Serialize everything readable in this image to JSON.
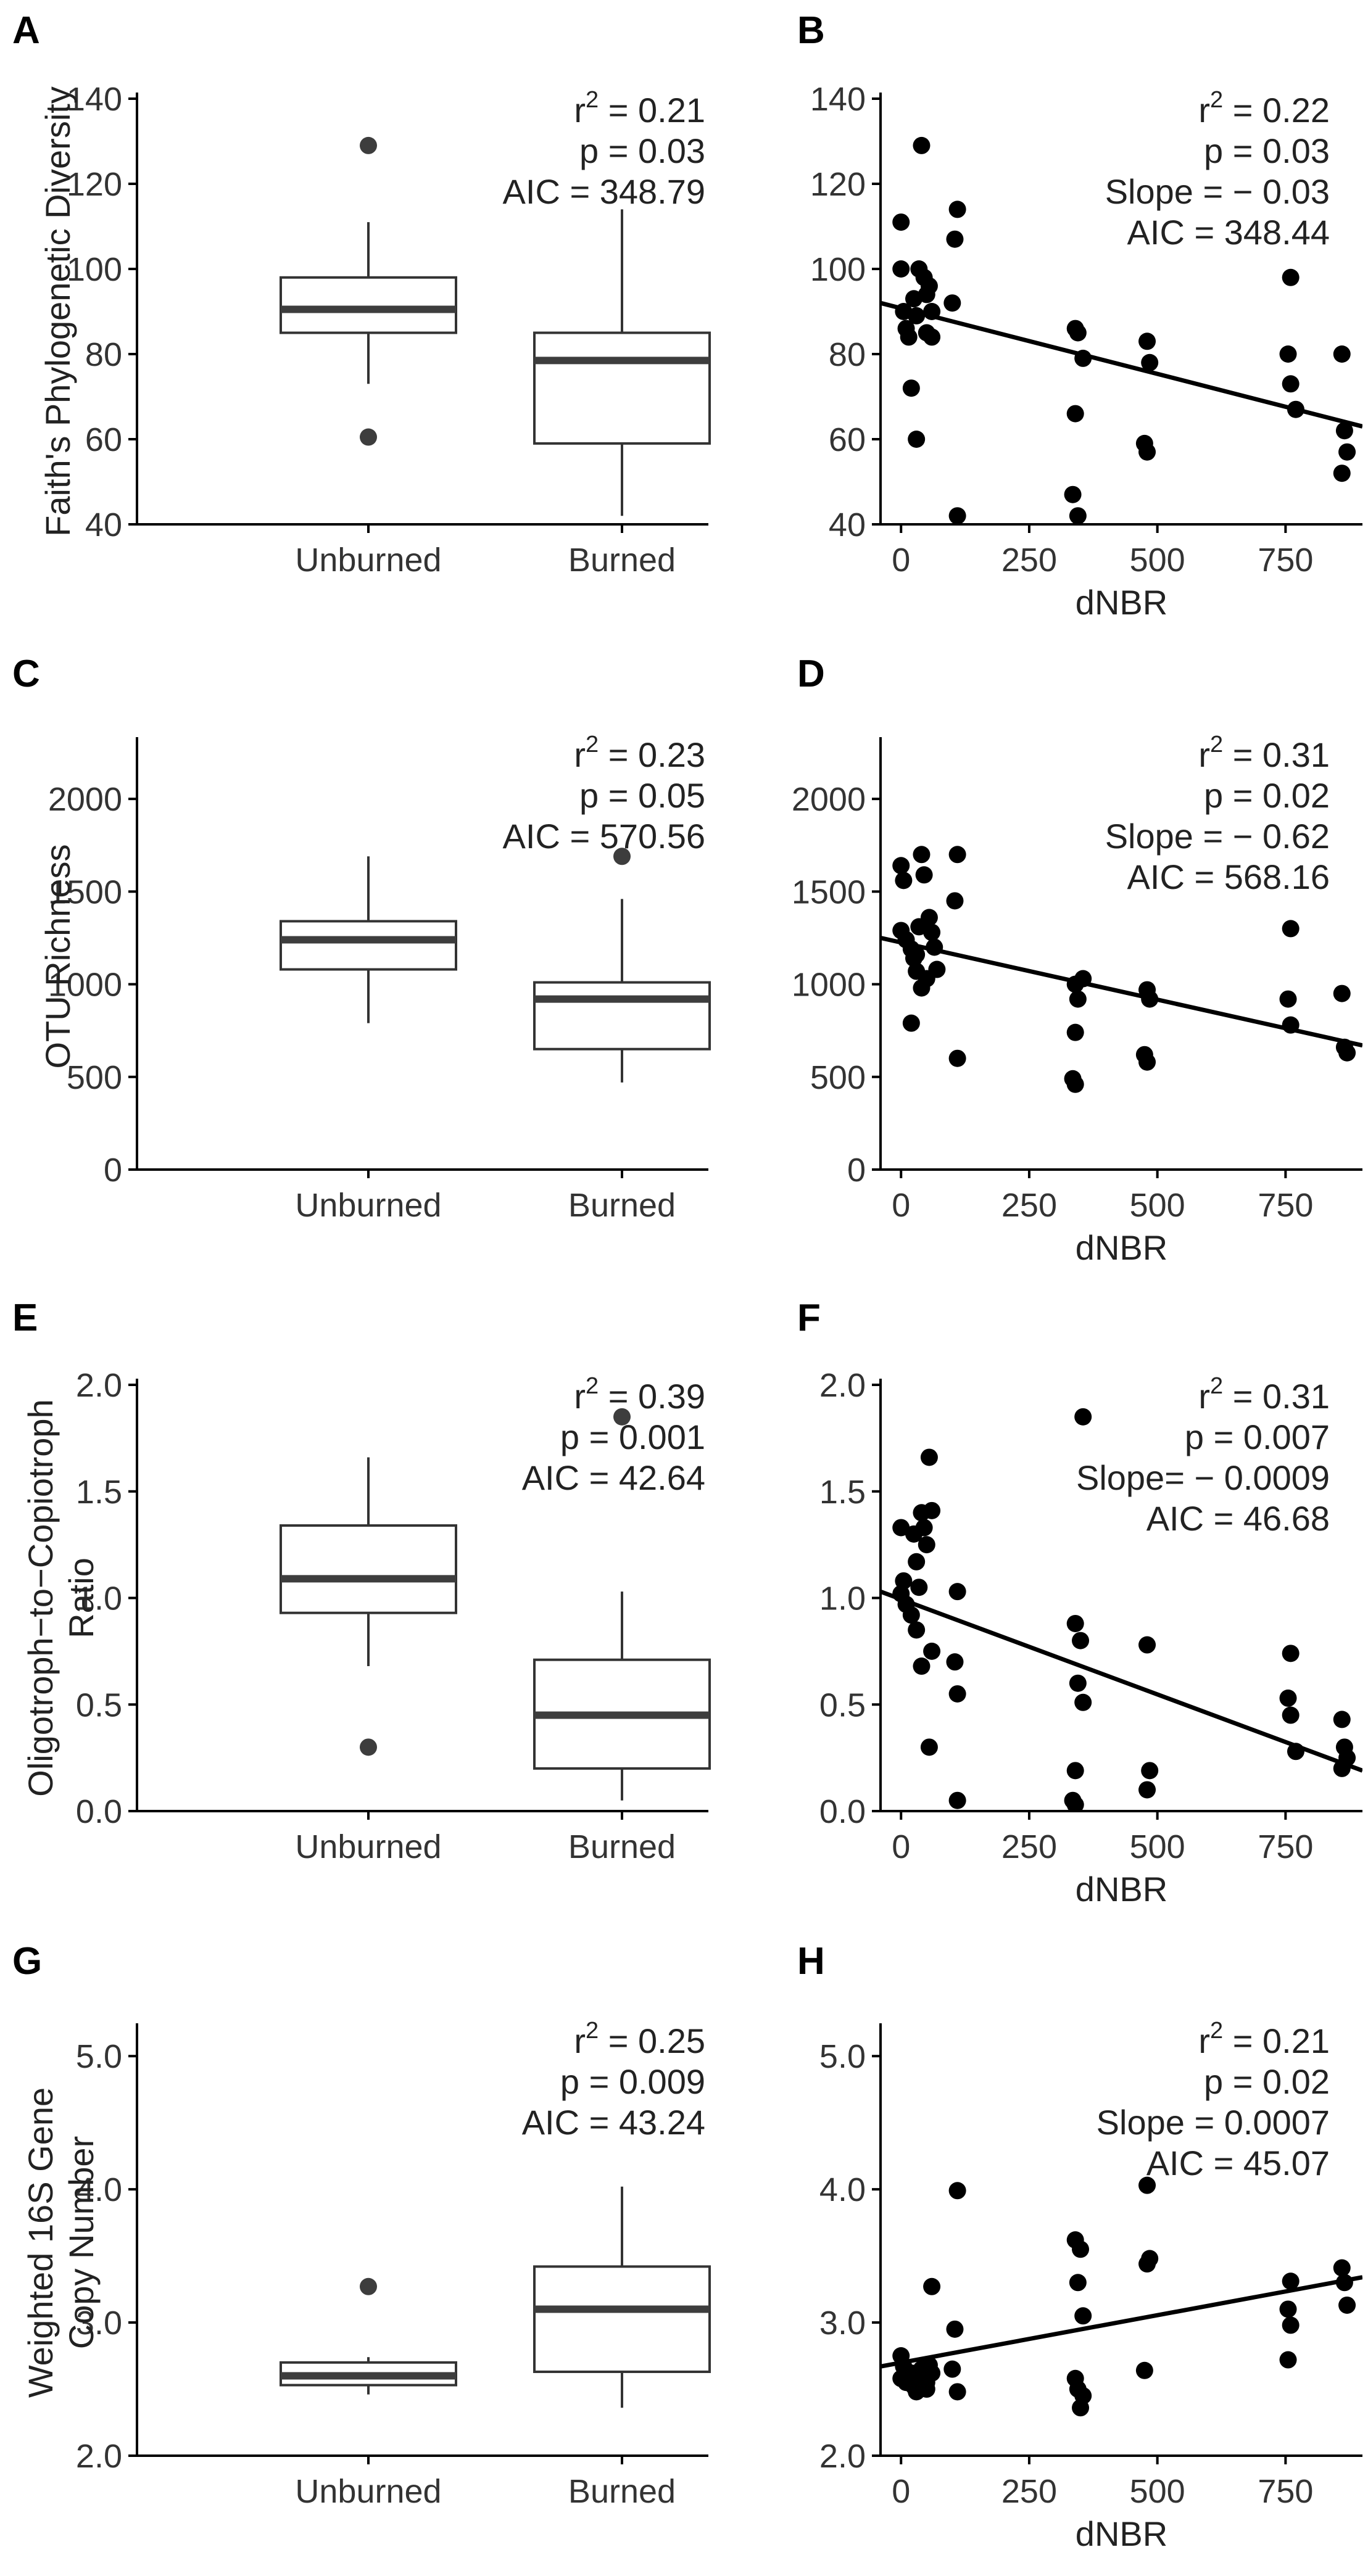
{
  "colors": {
    "box_stroke": "#333333",
    "median": "#3d3d3d",
    "points": "#000000",
    "outliers": "#3d3d3d",
    "axis": "#000000",
    "text": "#222222",
    "background": "#ffffff"
  },
  "chart_data": [
    {
      "panel": "A",
      "type": "box",
      "categories": [
        "Unburned",
        "Burned"
      ],
      "ylabel": "Faith's Phylogenetic Diversity",
      "ylabel_lines": [
        "Faith's Phylogenetic Diversity"
      ],
      "ylim": [
        40,
        140
      ],
      "yticks": [
        40,
        60,
        80,
        100,
        120,
        140
      ],
      "ytick_labels": [
        "40",
        "60",
        "80",
        "100",
        "120",
        "140"
      ],
      "boxes": [
        {
          "category": "Unburned",
          "whisker_low": 73,
          "q1": 85,
          "median": 90.5,
          "q3": 98,
          "whisker_high": 111,
          "outliers": [
            129,
            60.5
          ]
        },
        {
          "category": "Burned",
          "whisker_low": 42,
          "q1": 59,
          "median": 78.5,
          "q3": 85,
          "whisker_high": 114,
          "outliers": []
        }
      ],
      "stats": {
        "r2": "0.21",
        "p": "p = 0.03",
        "aic": "AIC = 348.79"
      }
    },
    {
      "panel": "B",
      "type": "scatter",
      "xlabel": "dNBR",
      "xlim": [
        -40,
        900
      ],
      "xticks": [
        0,
        250,
        500,
        750
      ],
      "xtick_labels": [
        "0",
        "250",
        "500",
        "750"
      ],
      "ylim": [
        40,
        140
      ],
      "yticks": [
        40,
        60,
        80,
        100,
        120,
        140
      ],
      "ytick_labels": [
        "40",
        "60",
        "80",
        "100",
        "120",
        "140"
      ],
      "points": [
        [
          0,
          111
        ],
        [
          0,
          100
        ],
        [
          5,
          90
        ],
        [
          10,
          86
        ],
        [
          15,
          84
        ],
        [
          40,
          129
        ],
        [
          35,
          100
        ],
        [
          25,
          93
        ],
        [
          30,
          89
        ],
        [
          20,
          72
        ],
        [
          30,
          60
        ],
        [
          45,
          98
        ],
        [
          50,
          94
        ],
        [
          55,
          96
        ],
        [
          60,
          90
        ],
        [
          50,
          85
        ],
        [
          60,
          84
        ],
        [
          110,
          114
        ],
        [
          105,
          107
        ],
        [
          100,
          92
        ],
        [
          110,
          42
        ],
        [
          340,
          86
        ],
        [
          345,
          85
        ],
        [
          355,
          79
        ],
        [
          340,
          66
        ],
        [
          335,
          47
        ],
        [
          345,
          42
        ],
        [
          480,
          83
        ],
        [
          485,
          78
        ],
        [
          475,
          59
        ],
        [
          480,
          57
        ],
        [
          760,
          98
        ],
        [
          755,
          80
        ],
        [
          760,
          73
        ],
        [
          770,
          67
        ],
        [
          860,
          80
        ],
        [
          865,
          62
        ],
        [
          870,
          57
        ],
        [
          860,
          52
        ]
      ],
      "fit": {
        "x0": -40,
        "y0": 92,
        "x1": 900,
        "y1": 63
      },
      "stats": {
        "r2": "0.22",
        "p": "p = 0.03",
        "slope": "Slope = − 0.03",
        "aic": "AIC = 348.44"
      }
    },
    {
      "panel": "C",
      "type": "box",
      "categories": [
        "Unburned",
        "Burned"
      ],
      "ylabel": "OTU Richness",
      "ylabel_lines": [
        "OTU Richness"
      ],
      "ylim": [
        0,
        2300
      ],
      "yticks": [
        0,
        500,
        1000,
        1500,
        2000
      ],
      "ytick_labels": [
        "0",
        "500",
        "1000",
        "1500",
        "2000"
      ],
      "boxes": [
        {
          "category": "Unburned",
          "whisker_low": 790,
          "q1": 1080,
          "median": 1240,
          "q3": 1340,
          "whisker_high": 1690,
          "outliers": []
        },
        {
          "category": "Burned",
          "whisker_low": 470,
          "q1": 650,
          "median": 920,
          "q3": 1010,
          "whisker_high": 1460,
          "outliers": [
            1690
          ]
        }
      ],
      "stats": {
        "r2": "0.23",
        "p": "p = 0.05",
        "aic": "AIC = 570.56"
      }
    },
    {
      "panel": "D",
      "type": "scatter",
      "xlabel": "dNBR",
      "xlim": [
        -40,
        900
      ],
      "xticks": [
        0,
        250,
        500,
        750
      ],
      "xtick_labels": [
        "0",
        "250",
        "500",
        "750"
      ],
      "ylim": [
        0,
        2300
      ],
      "yticks": [
        0,
        500,
        1000,
        1500,
        2000
      ],
      "ytick_labels": [
        "0",
        "500",
        "1000",
        "1500",
        "2000"
      ],
      "points": [
        [
          0,
          1640
        ],
        [
          5,
          1560
        ],
        [
          0,
          1290
        ],
        [
          10,
          1240
        ],
        [
          20,
          1190
        ],
        [
          30,
          1160
        ],
        [
          40,
          1700
        ],
        [
          45,
          1590
        ],
        [
          35,
          1310
        ],
        [
          25,
          1140
        ],
        [
          30,
          1070
        ],
        [
          40,
          980
        ],
        [
          20,
          790
        ],
        [
          55,
          1360
        ],
        [
          60,
          1280
        ],
        [
          65,
          1200
        ],
        [
          50,
          1030
        ],
        [
          70,
          1080
        ],
        [
          110,
          1700
        ],
        [
          105,
          1450
        ],
        [
          110,
          600
        ],
        [
          340,
          1000
        ],
        [
          345,
          920
        ],
        [
          355,
          1030
        ],
        [
          340,
          740
        ],
        [
          335,
          490
        ],
        [
          340,
          460
        ],
        [
          480,
          970
        ],
        [
          485,
          920
        ],
        [
          475,
          620
        ],
        [
          480,
          580
        ],
        [
          760,
          1300
        ],
        [
          755,
          920
        ],
        [
          760,
          780
        ],
        [
          860,
          950
        ],
        [
          865,
          660
        ],
        [
          870,
          630
        ]
      ],
      "fit": {
        "x0": -40,
        "y0": 1250,
        "x1": 900,
        "y1": 670
      },
      "stats": {
        "r2": "0.31",
        "p": "p = 0.02",
        "slope": "Slope = − 0.62",
        "aic": "AIC = 568.16"
      }
    },
    {
      "panel": "E",
      "type": "box",
      "categories": [
        "Unburned",
        "Burned"
      ],
      "ylabel": "Oligotroph−to−Copiotroph Ratio",
      "ylabel_lines": [
        "Oligotroph−to−Copiotroph",
        "Ratio"
      ],
      "ylim": [
        0.0,
        2.0
      ],
      "yticks": [
        0.0,
        0.5,
        1.0,
        1.5,
        2.0
      ],
      "ytick_labels": [
        "0.0",
        "0.5",
        "1.0",
        "1.5",
        "2.0"
      ],
      "boxes": [
        {
          "category": "Unburned",
          "whisker_low": 0.68,
          "q1": 0.93,
          "median": 1.09,
          "q3": 1.34,
          "whisker_high": 1.66,
          "outliers": [
            0.3
          ]
        },
        {
          "category": "Burned",
          "whisker_low": 0.05,
          "q1": 0.2,
          "median": 0.45,
          "q3": 0.71,
          "whisker_high": 1.03,
          "outliers": [
            1.85
          ]
        }
      ],
      "stats": {
        "r2": "0.39",
        "p": "p = 0.001",
        "aic": "AIC = 42.64"
      }
    },
    {
      "panel": "F",
      "type": "scatter",
      "xlabel": "dNBR",
      "xlim": [
        -40,
        900
      ],
      "xticks": [
        0,
        250,
        500,
        750
      ],
      "xtick_labels": [
        "0",
        "250",
        "500",
        "750"
      ],
      "ylim": [
        0.0,
        2.0
      ],
      "yticks": [
        0.0,
        0.5,
        1.0,
        1.5,
        2.0
      ],
      "ytick_labels": [
        "0.0",
        "0.5",
        "1.0",
        "1.5",
        "2.0"
      ],
      "points": [
        [
          0,
          1.33
        ],
        [
          5,
          1.08
        ],
        [
          0,
          1.02
        ],
        [
          10,
          0.97
        ],
        [
          25,
          1.3
        ],
        [
          30,
          1.17
        ],
        [
          35,
          1.05
        ],
        [
          20,
          0.92
        ],
        [
          40,
          1.4
        ],
        [
          45,
          1.33
        ],
        [
          30,
          0.85
        ],
        [
          40,
          0.68
        ],
        [
          55,
          1.66
        ],
        [
          60,
          1.41
        ],
        [
          50,
          1.25
        ],
        [
          55,
          0.3
        ],
        [
          60,
          0.75
        ],
        [
          110,
          1.03
        ],
        [
          105,
          0.7
        ],
        [
          110,
          0.55
        ],
        [
          110,
          0.05
        ],
        [
          340,
          0.88
        ],
        [
          350,
          0.8
        ],
        [
          345,
          0.6
        ],
        [
          340,
          0.19
        ],
        [
          335,
          0.05
        ],
        [
          340,
          0.03
        ],
        [
          355,
          1.85
        ],
        [
          355,
          0.51
        ],
        [
          480,
          0.78
        ],
        [
          485,
          0.19
        ],
        [
          480,
          0.1
        ],
        [
          760,
          0.74
        ],
        [
          755,
          0.53
        ],
        [
          760,
          0.45
        ],
        [
          770,
          0.28
        ],
        [
          860,
          0.43
        ],
        [
          865,
          0.3
        ],
        [
          870,
          0.25
        ],
        [
          860,
          0.2
        ]
      ],
      "fit": {
        "x0": -40,
        "y0": 1.03,
        "x1": 900,
        "y1": 0.19
      },
      "stats": {
        "r2": "0.31",
        "p": "p = 0.007",
        "slope": "Slope= − 0.0009",
        "aic": "AIC = 46.68"
      }
    },
    {
      "panel": "G",
      "type": "box",
      "categories": [
        "Unburned",
        "Burned"
      ],
      "ylabel": "Weighted 16S Gene Copy Number",
      "ylabel_lines": [
        "Weighted 16S Gene",
        "Copy Number"
      ],
      "ylim": [
        2.0,
        5.2
      ],
      "yticks": [
        2.0,
        3.0,
        4.0,
        5.0
      ],
      "ytick_labels": [
        "2.0",
        "3.0",
        "4.0",
        "5.0"
      ],
      "boxes": [
        {
          "category": "Unburned",
          "whisker_low": 2.46,
          "q1": 2.53,
          "median": 2.6,
          "q3": 2.7,
          "whisker_high": 2.74,
          "outliers": [
            3.27
          ]
        },
        {
          "category": "Burned",
          "whisker_low": 2.36,
          "q1": 2.63,
          "median": 3.1,
          "q3": 3.42,
          "whisker_high": 4.02,
          "outliers": []
        }
      ],
      "stats": {
        "r2": "0.25",
        "p": "p = 0.009",
        "aic": "AIC = 43.24"
      }
    },
    {
      "panel": "H",
      "type": "scatter",
      "xlabel": "dNBR",
      "xlim": [
        -40,
        900
      ],
      "xticks": [
        0,
        250,
        500,
        750
      ],
      "xtick_labels": [
        "0",
        "250",
        "500",
        "750"
      ],
      "ylim": [
        2.0,
        5.2
      ],
      "yticks": [
        2.0,
        3.0,
        4.0,
        5.0
      ],
      "ytick_labels": [
        "2.0",
        "3.0",
        "4.0",
        "5.0"
      ],
      "points": [
        [
          0,
          2.75
        ],
        [
          5,
          2.67
        ],
        [
          0,
          2.58
        ],
        [
          10,
          2.55
        ],
        [
          20,
          2.62
        ],
        [
          25,
          2.52
        ],
        [
          30,
          2.48
        ],
        [
          35,
          2.55
        ],
        [
          40,
          2.65
        ],
        [
          45,
          2.58
        ],
        [
          50,
          2.5
        ],
        [
          55,
          2.68
        ],
        [
          60,
          3.27
        ],
        [
          60,
          2.62
        ],
        [
          50,
          2.55
        ],
        [
          110,
          3.99
        ],
        [
          105,
          2.95
        ],
        [
          100,
          2.65
        ],
        [
          110,
          2.48
        ],
        [
          340,
          3.62
        ],
        [
          350,
          3.55
        ],
        [
          345,
          3.3
        ],
        [
          355,
          3.05
        ],
        [
          340,
          2.58
        ],
        [
          345,
          2.5
        ],
        [
          355,
          2.45
        ],
        [
          350,
          2.36
        ],
        [
          480,
          4.03
        ],
        [
          485,
          3.48
        ],
        [
          480,
          3.44
        ],
        [
          475,
          2.64
        ],
        [
          760,
          3.31
        ],
        [
          755,
          3.1
        ],
        [
          760,
          2.98
        ],
        [
          755,
          2.72
        ],
        [
          860,
          3.41
        ],
        [
          865,
          3.3
        ],
        [
          870,
          3.13
        ]
      ],
      "fit": {
        "x0": -40,
        "y0": 2.67,
        "x1": 900,
        "y1": 3.34
      },
      "stats": {
        "r2": "0.21",
        "p": "p = 0.02",
        "slope": "Slope = 0.0007",
        "aic": "AIC = 45.07"
      }
    }
  ]
}
